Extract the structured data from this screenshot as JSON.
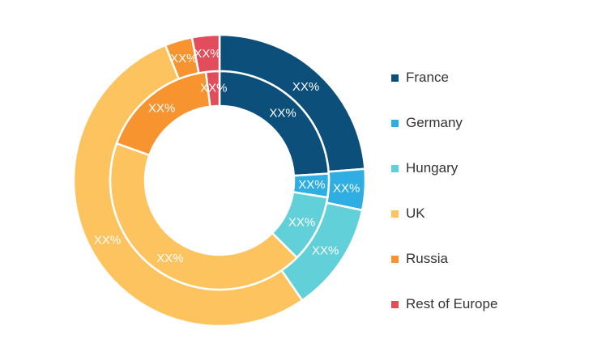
{
  "chart_data": {
    "type": "pie",
    "subtype": "nested-donut",
    "categories": [
      "France",
      "Germany",
      "Hungary",
      "UK",
      "Russia",
      "Rest of Europe"
    ],
    "colors": [
      "#0d4f7b",
      "#2eaee3",
      "#62d0d9",
      "#fdc35f",
      "#f79430",
      "#e24d5b"
    ],
    "series": [
      {
        "ring": "outer",
        "values": [
          23.5,
          4.5,
          12.0,
          53.0,
          3.0,
          3.0
        ],
        "labels": [
          "XX%",
          "XX%",
          "XX%",
          "XX%",
          "XX%",
          "XX%"
        ]
      },
      {
        "ring": "inner",
        "values": [
          24.0,
          3.5,
          10.0,
          43.0,
          17.5,
          2.0
        ],
        "labels": [
          "XX%",
          "XX%",
          "XX%",
          "XX%",
          "XX%",
          "XX%"
        ]
      }
    ],
    "legend": {
      "position": "right",
      "items": [
        {
          "label": "France",
          "color": "#0d4f7b"
        },
        {
          "label": "Germany",
          "color": "#2eaee3"
        },
        {
          "label": "Hungary",
          "color": "#62d0d9"
        },
        {
          "label": "UK",
          "color": "#fdc35f"
        },
        {
          "label": "Russia",
          "color": "#f79430"
        },
        {
          "label": "Rest of Europe",
          "color": "#e24d5b"
        }
      ]
    }
  }
}
